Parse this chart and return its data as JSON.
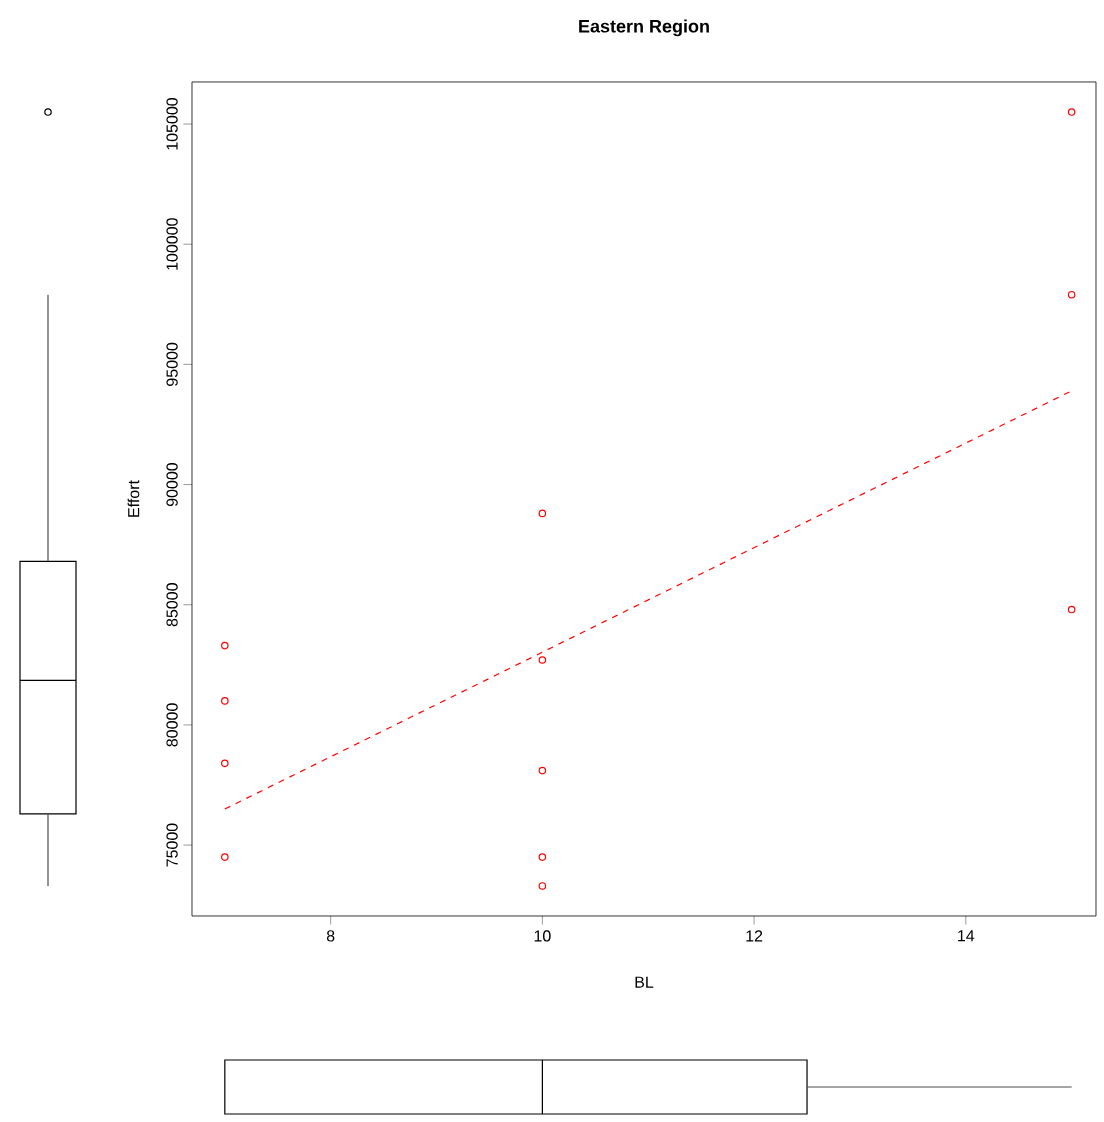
{
  "chart_data": {
    "type": "scatter",
    "title": "Eastern Region",
    "xlabel": "BL",
    "ylabel": "Effort",
    "marker": "circle",
    "xlim": [
      6.69,
      15.23
    ],
    "ylim": [
      72050,
      106750
    ],
    "xticks": [
      8,
      10,
      12,
      14
    ],
    "yticks": [
      75000,
      80000,
      85000,
      90000,
      95000,
      100000,
      105000
    ],
    "series": [
      {
        "type": "scatter",
        "color": "#ff0000",
        "x": [
          7,
          7,
          7,
          7,
          10,
          10,
          10,
          10,
          10,
          15,
          15,
          15
        ],
        "values": [
          83300,
          81000,
          78400,
          74500,
          88800,
          82700,
          78100,
          74500,
          73300,
          105500,
          97900,
          84800
        ]
      },
      {
        "type": "line",
        "color": "#ff0000",
        "marker": "none",
        "line_style": "dashed",
        "x": [
          7,
          15
        ],
        "values": [
          76500,
          93900
        ]
      }
    ]
  }
}
